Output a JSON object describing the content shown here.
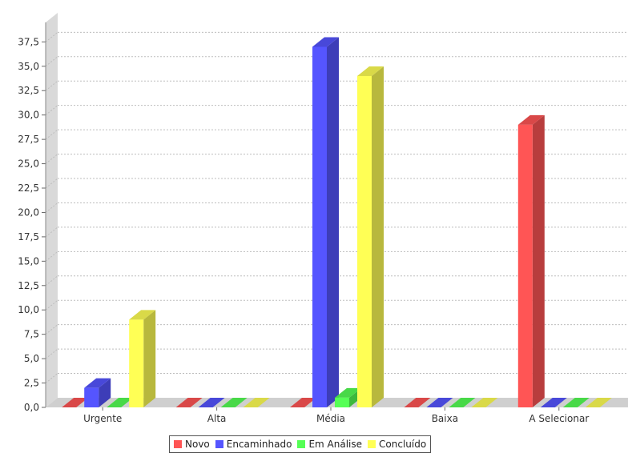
{
  "chart_data": {
    "type": "bar",
    "categories": [
      "Urgente",
      "Alta",
      "Média",
      "Baixa",
      "A Selecionar"
    ],
    "series": [
      {
        "name": "Novo",
        "color": "#ff5555",
        "values": [
          0,
          0,
          0,
          0,
          29
        ]
      },
      {
        "name": "Encaminhado",
        "color": "#5555ff",
        "values": [
          2,
          0,
          37,
          0,
          0
        ]
      },
      {
        "name": "Em Análise",
        "color": "#55ff55",
        "values": [
          0,
          0,
          1,
          0,
          0
        ]
      },
      {
        "name": "Concluído",
        "color": "#ffff55",
        "values": [
          9,
          0,
          34,
          0,
          0
        ]
      }
    ],
    "y_ticks": [
      "0,0",
      "2,5",
      "5,0",
      "7,5",
      "10,0",
      "12,5",
      "15,0",
      "17,5",
      "20,0",
      "22,5",
      "25,0",
      "27,5",
      "30,0",
      "32,5",
      "35,0",
      "37,5"
    ],
    "ylim": [
      0,
      39.5
    ],
    "grid": true,
    "legend_position": "bottom"
  }
}
